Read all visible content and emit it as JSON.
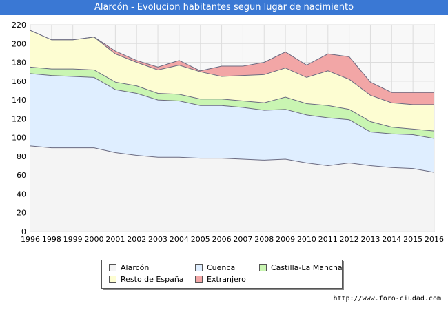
{
  "title": "Alarcón - Evolucion habitantes segun lugar de nacimiento",
  "source": "http://www.foro-ciudad.com",
  "chart_data": {
    "type": "area",
    "stacked": true,
    "x": [
      "1996",
      "1998",
      "1999",
      "2000",
      "2001",
      "2002",
      "2003",
      "2004",
      "2005",
      "2006",
      "2007",
      "2008",
      "2009",
      "2010",
      "2011",
      "2012",
      "2013",
      "2014",
      "2015",
      "2016"
    ],
    "ylim": [
      0,
      220
    ],
    "yticks": [
      0,
      20,
      40,
      60,
      80,
      100,
      120,
      140,
      160,
      180,
      200,
      220
    ],
    "grid": true,
    "legend_position": "bottom",
    "series": [
      {
        "name": "Alarcón",
        "color": "#f4f4f4",
        "line": "#6a6a80",
        "values": [
          91,
          89,
          89,
          89,
          84,
          81,
          79,
          79,
          78,
          78,
          77,
          76,
          77,
          73,
          70,
          73,
          70,
          68,
          67,
          63
        ]
      },
      {
        "name": "Cuenca",
        "color": "#dfeeff",
        "line": "#6a6a80",
        "values": [
          77,
          77,
          76,
          75,
          67,
          66,
          61,
          60,
          56,
          56,
          55,
          53,
          53,
          51,
          51,
          46,
          36,
          36,
          36,
          36
        ]
      },
      {
        "name": "Castilla-La Mancha",
        "color": "#c9f5b2",
        "line": "#6a6a80",
        "values": [
          7,
          7,
          8,
          8,
          8,
          8,
          7,
          7,
          7,
          7,
          7,
          8,
          13,
          12,
          13,
          11,
          11,
          7,
          6,
          8
        ]
      },
      {
        "name": "Resto de España",
        "color": "#fdfdd2",
        "line": "#6a6a80",
        "values": [
          39,
          31,
          31,
          35,
          30,
          25,
          25,
          31,
          29,
          24,
          27,
          30,
          31,
          28,
          37,
          32,
          28,
          26,
          26,
          28
        ]
      },
      {
        "name": "Extranjero",
        "color": "#f2a6a6",
        "line": "#6a6a80",
        "values": [
          0,
          0,
          0,
          0,
          3,
          2,
          3,
          5,
          1,
          11,
          10,
          13,
          17,
          13,
          18,
          24,
          14,
          11,
          13,
          13
        ]
      }
    ]
  },
  "legend_icons": [
    "square-swatch-icon"
  ]
}
